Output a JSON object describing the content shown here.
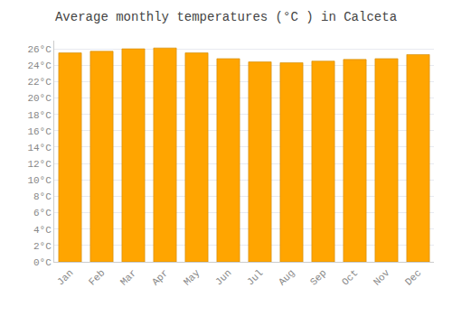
{
  "chart_data": {
    "type": "bar",
    "title": "Average monthly temperatures (°C ) in Calceta",
    "categories": [
      "Jan",
      "Feb",
      "Mar",
      "Apr",
      "May",
      "Jun",
      "Jul",
      "Aug",
      "Sep",
      "Oct",
      "Nov",
      "Dec"
    ],
    "values": [
      25.5,
      25.7,
      26.0,
      26.1,
      25.5,
      24.8,
      24.4,
      24.3,
      24.5,
      24.7,
      24.8,
      25.3
    ],
    "color": "#FFA500",
    "ylim": [
      0,
      27
    ],
    "yticks": [
      {
        "value": 0,
        "label": "0°C"
      },
      {
        "value": 2,
        "label": "2°C"
      },
      {
        "value": 4,
        "label": "4°C"
      },
      {
        "value": 6,
        "label": "6°C"
      },
      {
        "value": 8,
        "label": "8°C"
      },
      {
        "value": 10,
        "label": "10°C"
      },
      {
        "value": 12,
        "label": "12°C"
      },
      {
        "value": 14,
        "label": "14°C"
      },
      {
        "value": 16,
        "label": "16°C"
      },
      {
        "value": 18,
        "label": "18°C"
      },
      {
        "value": 20,
        "label": "20°C"
      },
      {
        "value": 22,
        "label": "22°C"
      },
      {
        "value": 24,
        "label": "24°C"
      },
      {
        "value": 26,
        "label": "26°C"
      }
    ],
    "grid": true
  }
}
